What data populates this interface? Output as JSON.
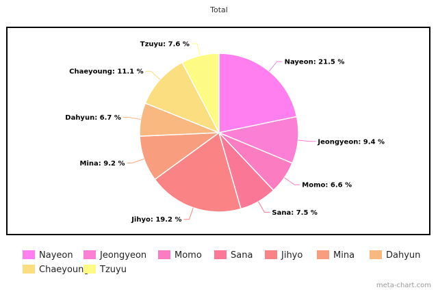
{
  "chart_data": {
    "type": "pie",
    "title": "Total",
    "label_format": "{name}: {value} %",
    "slices": [
      {
        "name": "Nayeon",
        "value": 21.5,
        "color": "#ff7ff0"
      },
      {
        "name": "Jeongyeon",
        "value": 9.4,
        "color": "#fc7fd6"
      },
      {
        "name": "Momo",
        "value": 6.6,
        "color": "#fb7cc0"
      },
      {
        "name": "Sana",
        "value": 7.5,
        "color": "#fa7795"
      },
      {
        "name": "Jihyo",
        "value": 19.2,
        "color": "#fa8485"
      },
      {
        "name": "Mina",
        "value": 9.2,
        "color": "#f89e7e"
      },
      {
        "name": "Dahyun",
        "value": 6.7,
        "color": "#f9b87f"
      },
      {
        "name": "Chaeyoung",
        "value": 11.1,
        "color": "#fbde7f"
      },
      {
        "name": "Tzuyu",
        "value": 7.6,
        "color": "#fdfb83"
      }
    ],
    "start_angle_deg": 0,
    "direction": "clockwise",
    "legend_position": "bottom"
  },
  "credit": "meta-chart.com"
}
